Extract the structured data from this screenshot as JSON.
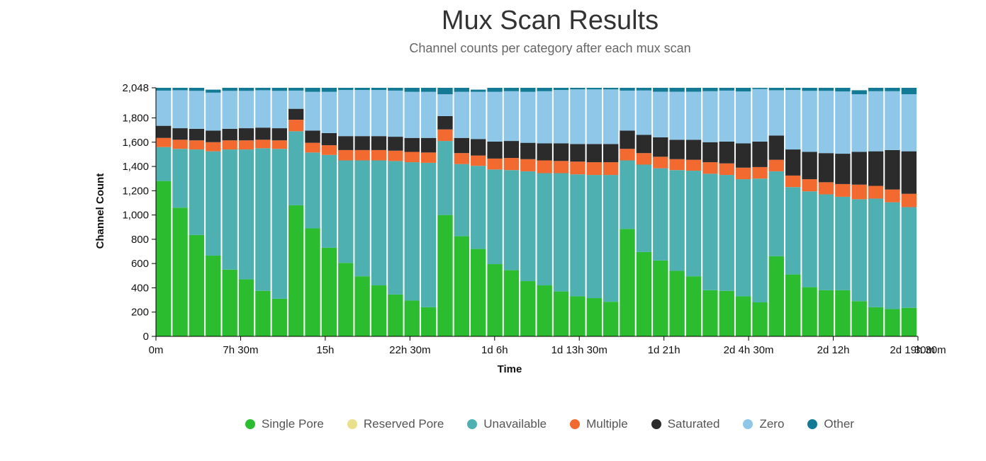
{
  "title": "Mux Scan Results",
  "subtitle": "Channel counts per category after each mux scan",
  "chart_data": {
    "type": "bar",
    "stacked": true,
    "title": "Mux Scan Results",
    "subtitle": "Channel counts per category after each mux scan",
    "xlabel": "Time",
    "ylabel": "Channel Count",
    "ylim": [
      0,
      2048
    ],
    "yticks": [
      "0",
      "200",
      "400",
      "600",
      "800",
      "1,000",
      "1,200",
      "1,400",
      "1,600",
      "1,800",
      "2,048"
    ],
    "ytick_values": [
      0,
      200,
      400,
      600,
      800,
      1000,
      1200,
      1400,
      1600,
      1800,
      2048
    ],
    "xticks": [
      "0m",
      "7h 30m",
      "15h",
      "22h 30m",
      "1d 6h",
      "1d 13h 30m",
      "1d 21h",
      "2d 4h 30m",
      "2d 12h",
      "2d 19h 30m"
    ],
    "x_range_label": [
      "0m",
      "2d 19h 30m"
    ],
    "xticks_extra": [
      "30m"
    ],
    "legend_position": "bottom",
    "grid": false,
    "series": [
      {
        "name": "Single Pore",
        "color": "#2bbd2f",
        "values": [
          1280,
          1060,
          835,
          665,
          550,
          470,
          375,
          310,
          1080,
          890,
          730,
          605,
          495,
          420,
          345,
          295,
          240,
          1000,
          825,
          720,
          595,
          545,
          455,
          420,
          370,
          330,
          315,
          285,
          885,
          695,
          625,
          540,
          495,
          380,
          375,
          330,
          280,
          660,
          510,
          405,
          380,
          380,
          290,
          240,
          225,
          235
        ]
      },
      {
        "name": "Reserved Pore",
        "color": "#e8e08a",
        "values": [
          0,
          0,
          0,
          0,
          0,
          0,
          0,
          0,
          0,
          0,
          0,
          0,
          0,
          0,
          0,
          0,
          0,
          0,
          0,
          0,
          0,
          0,
          0,
          0,
          0,
          0,
          0,
          0,
          0,
          0,
          0,
          0,
          0,
          0,
          0,
          0,
          0,
          0,
          0,
          0,
          0,
          0,
          0,
          0,
          0,
          0
        ]
      },
      {
        "name": "Unavailable",
        "color": "#4eb0b0",
        "values": [
          280,
          485,
          705,
          860,
          990,
          1070,
          1175,
          1235,
          610,
          625,
          765,
          845,
          955,
          1030,
          1100,
          1140,
          1190,
          610,
          595,
          685,
          780,
          825,
          905,
          925,
          975,
          1005,
          1015,
          1045,
          565,
          720,
          760,
          830,
          870,
          960,
          955,
          965,
          1020,
          700,
          720,
          790,
          790,
          770,
          840,
          895,
          880,
          830
        ]
      },
      {
        "name": "Multiple",
        "color": "#f26a30",
        "values": [
          75,
          75,
          75,
          75,
          75,
          75,
          70,
          70,
          95,
          80,
          80,
          85,
          85,
          85,
          85,
          85,
          85,
          95,
          90,
          85,
          90,
          100,
          100,
          105,
          100,
          105,
          105,
          105,
          95,
          95,
          95,
          90,
          90,
          95,
          95,
          95,
          95,
          95,
          95,
          100,
          100,
          105,
          120,
          105,
          105,
          110
        ]
      },
      {
        "name": "Saturated",
        "color": "#2b2b2b",
        "values": [
          100,
          95,
          95,
          95,
          95,
          100,
          100,
          100,
          90,
          100,
          100,
          115,
          115,
          115,
          115,
          115,
          120,
          110,
          125,
          135,
          140,
          140,
          135,
          140,
          145,
          145,
          150,
          150,
          150,
          150,
          160,
          160,
          165,
          165,
          180,
          200,
          210,
          200,
          215,
          225,
          240,
          250,
          270,
          285,
          325,
          350
        ]
      },
      {
        "name": "Zero",
        "color": "#8ec7e8",
        "values": [
          290,
          313,
          313,
          313,
          313,
          308,
          308,
          308,
          150,
          320,
          340,
          380,
          380,
          380,
          380,
          380,
          380,
          180,
          380,
          390,
          410,
          410,
          420,
          430,
          440,
          450,
          450,
          450,
          330,
          366,
          376,
          396,
          396,
          420,
          420,
          428,
          433,
          373,
          490,
          503,
          513,
          513,
          475,
          495,
          485,
          470
        ]
      },
      {
        "name": "Other",
        "color": "#137a96",
        "values": [
          23,
          20,
          25,
          25,
          25,
          25,
          20,
          25,
          23,
          33,
          33,
          18,
          18,
          18,
          23,
          33,
          33,
          53,
          33,
          18,
          33,
          28,
          33,
          28,
          18,
          13,
          13,
          13,
          23,
          22,
          32,
          32,
          32,
          28,
          23,
          30,
          10,
          20,
          18,
          25,
          25,
          30,
          33,
          28,
          28,
          53
        ]
      }
    ]
  },
  "legend": {
    "items": [
      {
        "label": "Single Pore",
        "color": "#2bbd2f"
      },
      {
        "label": "Reserved Pore",
        "color": "#e8e08a"
      },
      {
        "label": "Unavailable",
        "color": "#4eb0b0"
      },
      {
        "label": "Multiple",
        "color": "#f26a30"
      },
      {
        "label": "Saturated",
        "color": "#2b2b2b"
      },
      {
        "label": "Zero",
        "color": "#8ec7e8"
      },
      {
        "label": "Other",
        "color": "#137a96"
      }
    ]
  }
}
